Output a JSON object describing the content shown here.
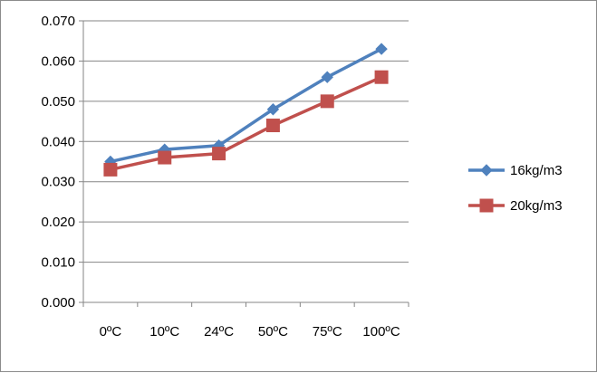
{
  "chart_data": {
    "type": "line",
    "categories": [
      "0ºC",
      "10ºC",
      "24ºC",
      "50ºC",
      "75ºC",
      "100ºC"
    ],
    "series": [
      {
        "name": "16kg/m3",
        "values": [
          0.035,
          0.038,
          0.039,
          0.048,
          0.056,
          0.063
        ],
        "color": "#4F81BD",
        "marker": "diamond"
      },
      {
        "name": "20kg/m3",
        "values": [
          0.033,
          0.036,
          0.037,
          0.044,
          0.05,
          0.056
        ],
        "color": "#C0504D",
        "marker": "square"
      }
    ],
    "y_ticks": [
      "0.000",
      "0.010",
      "0.020",
      "0.030",
      "0.040",
      "0.050",
      "0.060",
      "0.070"
    ],
    "ylim": [
      0,
      0.07
    ],
    "grid": true,
    "legend_position": "right"
  }
}
